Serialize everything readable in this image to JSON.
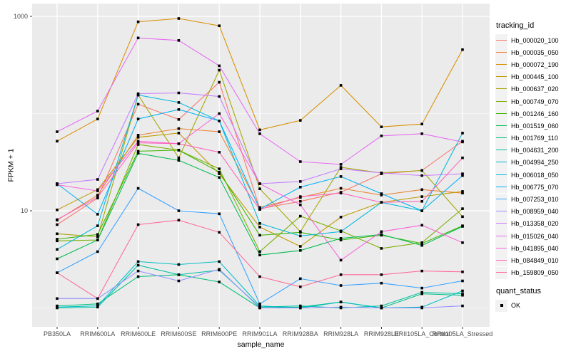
{
  "style_colors": {
    "panel_bg": "#EBEBEB",
    "gridline": "#FFFFFF",
    "axis_text": "#4D4D4D",
    "axis_title": "#000000",
    "tick_mark": "#333333",
    "legend_key_bg": "#F2F2F2",
    "point": "#000000"
  },
  "chart_data": {
    "type": "line",
    "title": "",
    "xlabel": "sample_name",
    "ylabel": "FPKM + 1",
    "y_scale": "log10",
    "grid": true,
    "legend_position": "right",
    "legend_title": "tracking_id",
    "ylim": [
      0.62,
      1350
    ],
    "y_ticks": [
      {
        "label": "1000",
        "value": 1000
      },
      {
        "label": "10",
        "value": 10
      }
    ],
    "y_minor_gridlines": [
      100,
      1
    ],
    "x_categories": [
      "PB350LA",
      "RRIM600LA",
      "RRIM600LE",
      "RRIM600SE",
      "RRIM600PE",
      "RRIM901LA",
      "RRIM928BA",
      "RRIM928LA",
      "RRIM928LE",
      "RRII105LA_Control",
      "RRII105LA_Stressed"
    ],
    "series": [
      {
        "name": "Hb_000020_100",
        "color": "#F8766D",
        "values": [
          7.2,
          13.5,
          125,
          87,
          210,
          10.5,
          12.5,
          15.5,
          24,
          26,
          52
        ]
      },
      {
        "name": "Hb_000035_050",
        "color": "#EA8331",
        "values": [
          8.0,
          14.5,
          60,
          70,
          65,
          10.8,
          13.7,
          17,
          14.5,
          16.5,
          15.2
        ]
      },
      {
        "name": "Hb_000072_190",
        "color": "#D89000",
        "values": [
          52,
          88,
          880,
          950,
          800,
          68,
          85,
          195,
          73,
          78,
          455
        ]
      },
      {
        "name": "Hb_000445_100",
        "color": "#C09B00",
        "values": [
          10.2,
          16.5,
          57,
          63,
          24,
          6.8,
          4.3,
          8.6,
          12.2,
          14,
          15.8
        ]
      },
      {
        "name": "Hb_000637_020",
        "color": "#A3A500",
        "values": [
          5.8,
          5.4,
          155,
          35,
          280,
          16.8,
          6.1,
          28,
          24.5,
          26,
          8.7
        ]
      },
      {
        "name": "Hb_000749_070",
        "color": "#7CAE00",
        "values": [
          4.9,
          5.0,
          48,
          42,
          27,
          3.8,
          8.8,
          6.2,
          4.1,
          4.7,
          10.5
        ]
      },
      {
        "name": "Hb_001246_160",
        "color": "#39B600",
        "values": [
          5.1,
          5.7,
          41,
          42,
          25,
          5.6,
          6.0,
          5.0,
          5.6,
          4.6,
          7.0
        ]
      },
      {
        "name": "Hb_001519_060",
        "color": "#00BB4E",
        "values": [
          3.2,
          5.0,
          39,
          33,
          22,
          3.5,
          3.9,
          5.2,
          5.7,
          4.4,
          6.9
        ]
      },
      {
        "name": "Hb_001769_110",
        "color": "#00BF7D",
        "values": [
          1.05,
          1.1,
          2.1,
          2.2,
          1.85,
          1.0,
          1.02,
          1.15,
          1.0,
          1.4,
          1.35
        ]
      },
      {
        "name": "Hb_004631_200",
        "color": "#00C1A3",
        "values": [
          1.0,
          1.02,
          2.75,
          2.2,
          2.45,
          1.02,
          1.05,
          1.0,
          1.05,
          1.45,
          1.4
        ]
      },
      {
        "name": "Hb_004994_250",
        "color": "#00BFC4",
        "values": [
          1.02,
          1.05,
          3.0,
          2.8,
          3.0,
          1.05,
          1.0,
          1.15,
          1.0,
          1.02,
          1.5
        ]
      },
      {
        "name": "Hb_006018_050",
        "color": "#00BAE0",
        "values": [
          4.0,
          7.0,
          155,
          130,
          84,
          7.4,
          5.5,
          6.1,
          12.2,
          10,
          63
        ]
      },
      {
        "name": "Hb_006775_070",
        "color": "#00B0F6",
        "values": [
          19,
          9.2,
          88,
          110,
          84,
          10.4,
          17.5,
          22.5,
          15,
          10,
          23
        ]
      },
      {
        "name": "Hb_007253_010",
        "color": "#35A2FF",
        "values": [
          2.3,
          3.8,
          17,
          10,
          9.3,
          1.1,
          2.0,
          1.7,
          1.8,
          1.6,
          1.9
        ]
      },
      {
        "name": "Hb_008959_040",
        "color": "#9590FF",
        "values": [
          1.25,
          1.25,
          2.4,
          1.9,
          2.5,
          1.0,
          1.0,
          1.02,
          1.0,
          1.0,
          1.05
        ]
      },
      {
        "name": "Hb_013358_020",
        "color": "#C77CFF",
        "values": [
          19,
          21,
          160,
          163,
          150,
          19,
          20,
          27,
          24.5,
          23,
          24
        ]
      },
      {
        "name": "Hb_015026_040",
        "color": "#E76BF3",
        "values": [
          65,
          106,
          600,
          565,
          310,
          62,
          32,
          30,
          59,
          62,
          51
        ]
      },
      {
        "name": "Hb_041895_040",
        "color": "#FA62DB",
        "values": [
          18.5,
          16,
          52,
          49,
          100,
          19,
          11.5,
          3.1,
          6.1,
          7.1,
          4.7
        ]
      },
      {
        "name": "Hb_084849_010",
        "color": "#FF62BC",
        "values": [
          8.1,
          13.8,
          50,
          49,
          40,
          10.3,
          14,
          15.2,
          12.2,
          12.5,
          35
        ]
      },
      {
        "name": "Hb_159809_050",
        "color": "#FF6A98",
        "values": [
          2.3,
          1.25,
          7.2,
          8.0,
          6.0,
          2.1,
          1.65,
          2.2,
          2.2,
          2.4,
          2.35
        ]
      }
    ],
    "point_marker": {
      "shape": "square",
      "color": "#000000"
    },
    "point_legend": {
      "title": "quant_status",
      "items": [
        {
          "label": "OK",
          "color": "#000000"
        }
      ]
    }
  }
}
